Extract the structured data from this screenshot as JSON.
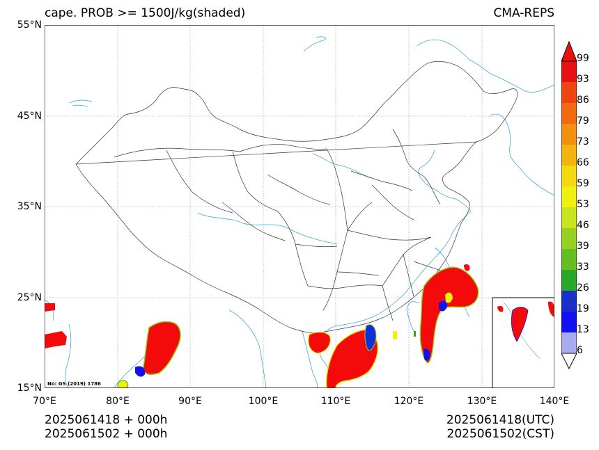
{
  "header": {
    "title": "cape. PROB >= 1500J/kg(shaded)",
    "model": "CMA-REPS"
  },
  "axes": {
    "lat_labels": [
      "55°N",
      "45°N",
      "35°N",
      "25°N",
      "15°N"
    ],
    "lon_labels": [
      "70°E",
      "80°E",
      "90°E",
      "100°E",
      "110°E",
      "120°E",
      "130°E",
      "140°E"
    ],
    "lat_range": [
      15,
      55
    ],
    "lon_range": [
      70,
      140
    ]
  },
  "footer": {
    "left_line1": "2025061418  +  000h",
    "left_line2": "2025061502  +  000h",
    "right_line1": "2025061418(UTC)",
    "right_line2": "2025061502(CST)"
  },
  "review_number": "No: GS (2019) 1786",
  "colorbar": {
    "labels": [
      "99",
      "93",
      "86",
      "79",
      "73",
      "66",
      "59",
      "53",
      "46",
      "39",
      "33",
      "26",
      "19",
      "13",
      "6"
    ],
    "colors": [
      "#e81010",
      "#f04410",
      "#f26a10",
      "#f39010",
      "#f4b410",
      "#f4d810",
      "#f0f010",
      "#c8e41c",
      "#96d020",
      "#64be20",
      "#28a828",
      "#1830c8",
      "#1010f0",
      "#4444f0",
      "#aaaaf0"
    ],
    "over_color": "#e81010",
    "under_color": "#ffffff"
  },
  "colors": {
    "coast": "#41a8d8",
    "border": "#333333",
    "grid": "#8888aa",
    "fill_max": "#f40a0a"
  }
}
